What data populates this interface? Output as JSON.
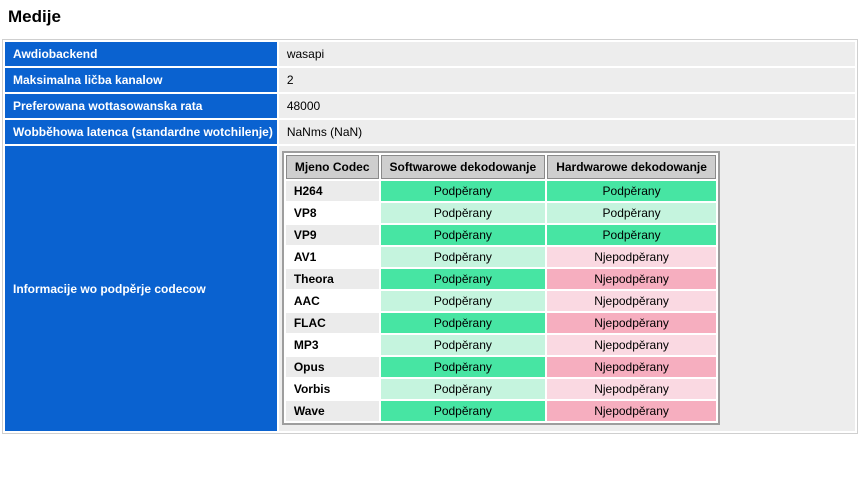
{
  "page": {
    "title": "Medije"
  },
  "colors": {
    "accent_blue": "#0a62d0",
    "supported_green_dark": "#47e5a3",
    "supported_green_light": "#c5f4de",
    "unsupported_pink_dark": "#f6aebf",
    "unsupported_pink_light": "#fad9e2"
  },
  "info_rows": [
    {
      "label": "Awdiobackend",
      "value": "wasapi"
    },
    {
      "label": "Maksimalna ličba kanalow",
      "value": "2"
    },
    {
      "label": "Preferowana wottasowanska rata",
      "value": "48000"
    },
    {
      "label": "Wobběhowa latenca (standardne wotchilenje)",
      "value": "NaNms (NaN)"
    }
  ],
  "codec_section": {
    "label": "Informacije wo podpěrje codecow",
    "table": {
      "headers": [
        "Mjeno Codec",
        "Softwarowe dekodowanje",
        "Hardwarowe dekodowanje"
      ],
      "labels": {
        "supported": "Podpěrany",
        "unsupported": "Njepodpěrany"
      },
      "rows": [
        {
          "codec": "H264",
          "software": "supported",
          "hardware": "supported"
        },
        {
          "codec": "VP8",
          "software": "supported",
          "hardware": "supported"
        },
        {
          "codec": "VP9",
          "software": "supported",
          "hardware": "supported"
        },
        {
          "codec": "AV1",
          "software": "supported",
          "hardware": "unsupported"
        },
        {
          "codec": "Theora",
          "software": "supported",
          "hardware": "unsupported"
        },
        {
          "codec": "AAC",
          "software": "supported",
          "hardware": "unsupported"
        },
        {
          "codec": "FLAC",
          "software": "supported",
          "hardware": "unsupported"
        },
        {
          "codec": "MP3",
          "software": "supported",
          "hardware": "unsupported"
        },
        {
          "codec": "Opus",
          "software": "supported",
          "hardware": "unsupported"
        },
        {
          "codec": "Vorbis",
          "software": "supported",
          "hardware": "unsupported"
        },
        {
          "codec": "Wave",
          "software": "supported",
          "hardware": "unsupported"
        }
      ]
    }
  }
}
